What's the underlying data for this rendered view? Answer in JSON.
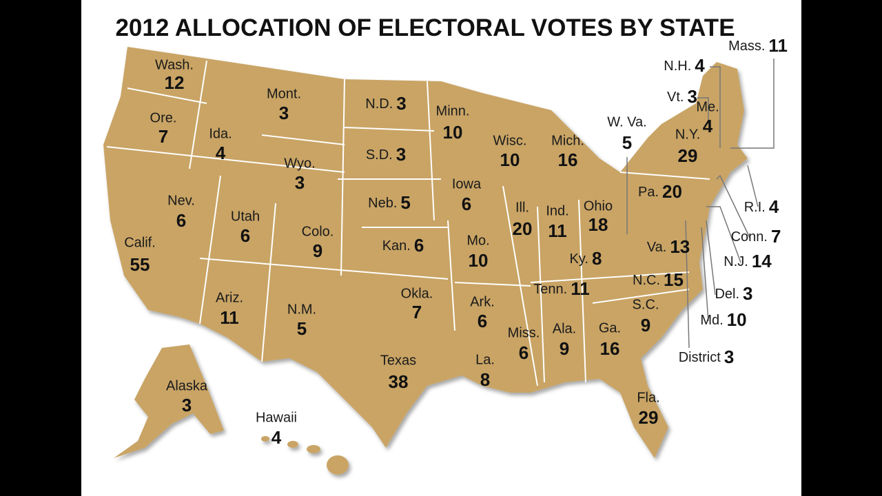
{
  "title": "2012 ALLOCATION OF ELECTORAL VOTES BY STATE",
  "states": [
    {
      "name": "Wash.",
      "votes": 12
    },
    {
      "name": "Ore.",
      "votes": 7
    },
    {
      "name": "Ida.",
      "votes": 4
    },
    {
      "name": "Mont.",
      "votes": 3
    },
    {
      "name": "N.D.",
      "votes": 3
    },
    {
      "name": "Minn.",
      "votes": 10
    },
    {
      "name": "S.D.",
      "votes": 3
    },
    {
      "name": "Wyo.",
      "votes": 3
    },
    {
      "name": "Wisc.",
      "votes": 10
    },
    {
      "name": "Mich.",
      "votes": 16
    },
    {
      "name": "Iowa",
      "votes": 6
    },
    {
      "name": "Neb.",
      "votes": 5
    },
    {
      "name": "Nev.",
      "votes": 6
    },
    {
      "name": "Utah",
      "votes": 6
    },
    {
      "name": "Colo.",
      "votes": 9
    },
    {
      "name": "Calif.",
      "votes": 55
    },
    {
      "name": "Kan.",
      "votes": 6
    },
    {
      "name": "Mo.",
      "votes": 10
    },
    {
      "name": "Ill.",
      "votes": 20
    },
    {
      "name": "Ind.",
      "votes": 11
    },
    {
      "name": "Ohio",
      "votes": 18
    },
    {
      "name": "W. Va.",
      "votes": 5
    },
    {
      "name": "Pa.",
      "votes": 20
    },
    {
      "name": "N.Y.",
      "votes": 29
    },
    {
      "name": "Me.",
      "votes": 4
    },
    {
      "name": "Vt.",
      "votes": 3
    },
    {
      "name": "N.H.",
      "votes": 4
    },
    {
      "name": "Mass.",
      "votes": 11
    },
    {
      "name": "R.I.",
      "votes": 4
    },
    {
      "name": "Conn.",
      "votes": 7
    },
    {
      "name": "N.J.",
      "votes": 14
    },
    {
      "name": "Del.",
      "votes": 3
    },
    {
      "name": "Md.",
      "votes": 10
    },
    {
      "name": "District",
      "votes": 3
    },
    {
      "name": "Va.",
      "votes": 13
    },
    {
      "name": "Ky.",
      "votes": 8
    },
    {
      "name": "Tenn.",
      "votes": 11
    },
    {
      "name": "N.C.",
      "votes": 15
    },
    {
      "name": "S.C.",
      "votes": 9
    },
    {
      "name": "Ga.",
      "votes": 16
    },
    {
      "name": "Ala.",
      "votes": 9
    },
    {
      "name": "Miss.",
      "votes": 6
    },
    {
      "name": "Ark.",
      "votes": 6
    },
    {
      "name": "La.",
      "votes": 8
    },
    {
      "name": "Okla.",
      "votes": 7
    },
    {
      "name": "Texas",
      "votes": 38
    },
    {
      "name": "Ariz.",
      "votes": 11
    },
    {
      "name": "N.M.",
      "votes": 5
    },
    {
      "name": "Alaska",
      "votes": 3
    },
    {
      "name": "Hawaii",
      "votes": 4
    },
    {
      "name": "Fla.",
      "votes": 29
    }
  ]
}
